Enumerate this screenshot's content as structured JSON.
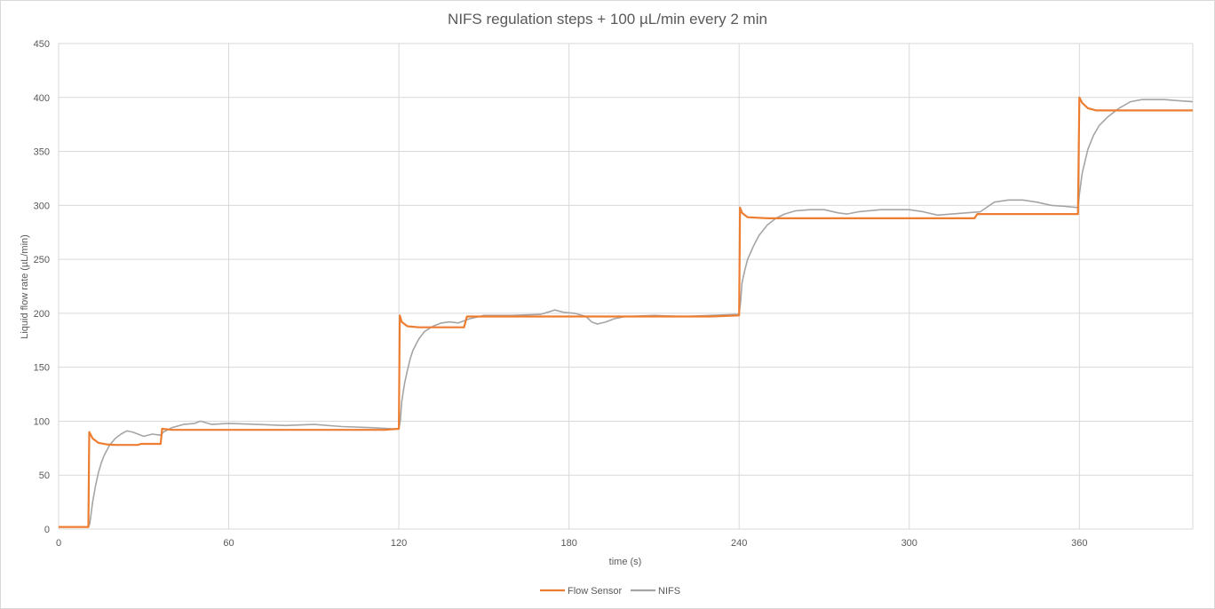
{
  "chart_data": {
    "type": "line",
    "title": "NIFS regulation steps + 100 µL/min every 2 min",
    "xlabel": "time (s)",
    "ylabel": "Liquid flow rate (µL/min)",
    "xlim": [
      0,
      400
    ],
    "ylim": [
      0,
      450
    ],
    "xticks": [
      0,
      60,
      120,
      180,
      240,
      300,
      360
    ],
    "yticks": [
      0,
      50,
      100,
      150,
      200,
      250,
      300,
      350,
      400,
      450
    ],
    "grid": true,
    "legend_position": "bottom",
    "series": [
      {
        "name": "Flow Sensor",
        "color": "#ed7d31",
        "points": [
          [
            0,
            2
          ],
          [
            10.5,
            2
          ],
          [
            10.8,
            90
          ],
          [
            12,
            84
          ],
          [
            14,
            80
          ],
          [
            17,
            78.5
          ],
          [
            20,
            78
          ],
          [
            28,
            78
          ],
          [
            29,
            79
          ],
          [
            36,
            79
          ],
          [
            36.5,
            93
          ],
          [
            40,
            92
          ],
          [
            60,
            92
          ],
          [
            80,
            92
          ],
          [
            100,
            92
          ],
          [
            115,
            92
          ],
          [
            120,
            93
          ],
          [
            120.3,
            198
          ],
          [
            121,
            192
          ],
          [
            123,
            188
          ],
          [
            127,
            187
          ],
          [
            135,
            187
          ],
          [
            143,
            187
          ],
          [
            144,
            197
          ],
          [
            150,
            197
          ],
          [
            170,
            197
          ],
          [
            190,
            197
          ],
          [
            210,
            197
          ],
          [
            230,
            197
          ],
          [
            240,
            198
          ],
          [
            240.3,
            298
          ],
          [
            241,
            293
          ],
          [
            243,
            289
          ],
          [
            250,
            288
          ],
          [
            270,
            288
          ],
          [
            290,
            288
          ],
          [
            310,
            288
          ],
          [
            323,
            288
          ],
          [
            324,
            292
          ],
          [
            340,
            292
          ],
          [
            359.5,
            292
          ],
          [
            360,
            400
          ],
          [
            361,
            395
          ],
          [
            363,
            390
          ],
          [
            366,
            388
          ],
          [
            380,
            388
          ],
          [
            400,
            388
          ]
        ]
      },
      {
        "name": "NIFS",
        "color": "#a5a5a5",
        "points": [
          [
            0,
            2
          ],
          [
            10.5,
            2
          ],
          [
            11,
            5
          ],
          [
            12,
            25
          ],
          [
            13,
            40
          ],
          [
            14,
            52
          ],
          [
            15,
            61
          ],
          [
            16,
            68
          ],
          [
            18,
            78
          ],
          [
            20,
            84
          ],
          [
            22,
            88
          ],
          [
            24,
            91
          ],
          [
            26,
            90
          ],
          [
            28,
            88
          ],
          [
            30,
            86
          ],
          [
            33,
            88
          ],
          [
            36,
            87
          ],
          [
            37,
            90
          ],
          [
            40,
            94
          ],
          [
            44,
            97
          ],
          [
            48,
            98
          ],
          [
            50,
            100
          ],
          [
            54,
            97
          ],
          [
            60,
            98
          ],
          [
            70,
            97
          ],
          [
            80,
            96
          ],
          [
            90,
            97
          ],
          [
            100,
            95
          ],
          [
            110,
            94
          ],
          [
            118,
            93
          ],
          [
            120,
            93
          ],
          [
            120.5,
            100
          ],
          [
            121,
            118
          ],
          [
            122,
            135
          ],
          [
            123,
            147
          ],
          [
            124,
            158
          ],
          [
            125,
            166
          ],
          [
            127,
            176
          ],
          [
            129,
            183
          ],
          [
            132,
            188
          ],
          [
            135,
            191
          ],
          [
            138,
            192
          ],
          [
            141,
            191
          ],
          [
            143,
            193
          ],
          [
            145,
            195
          ],
          [
            150,
            198
          ],
          [
            160,
            198
          ],
          [
            170,
            199
          ],
          [
            175,
            203
          ],
          [
            178,
            201
          ],
          [
            182,
            200
          ],
          [
            186,
            197
          ],
          [
            188,
            192
          ],
          [
            190,
            190
          ],
          [
            193,
            192
          ],
          [
            196,
            195
          ],
          [
            200,
            197
          ],
          [
            210,
            198
          ],
          [
            220,
            197
          ],
          [
            230,
            198
          ],
          [
            240,
            199
          ],
          [
            240.5,
            210
          ],
          [
            241,
            228
          ],
          [
            242,
            240
          ],
          [
            243,
            250
          ],
          [
            245,
            262
          ],
          [
            247,
            272
          ],
          [
            250,
            282
          ],
          [
            253,
            288
          ],
          [
            256,
            292
          ],
          [
            260,
            295
          ],
          [
            265,
            296
          ],
          [
            270,
            296
          ],
          [
            275,
            293
          ],
          [
            278,
            292
          ],
          [
            282,
            294
          ],
          [
            290,
            296
          ],
          [
            300,
            296
          ],
          [
            305,
            294
          ],
          [
            310,
            291
          ],
          [
            315,
            292
          ],
          [
            320,
            293
          ],
          [
            325,
            294
          ],
          [
            330,
            303
          ],
          [
            335,
            305
          ],
          [
            340,
            305
          ],
          [
            345,
            303
          ],
          [
            350,
            300
          ],
          [
            355,
            299
          ],
          [
            359.5,
            298
          ],
          [
            360,
            310
          ],
          [
            361,
            330
          ],
          [
            363,
            352
          ],
          [
            365,
            365
          ],
          [
            367,
            374
          ],
          [
            370,
            382
          ],
          [
            374,
            390
          ],
          [
            378,
            396
          ],
          [
            382,
            398
          ],
          [
            386,
            398
          ],
          [
            390,
            398
          ],
          [
            395,
            397
          ],
          [
            400,
            396
          ]
        ]
      }
    ]
  }
}
